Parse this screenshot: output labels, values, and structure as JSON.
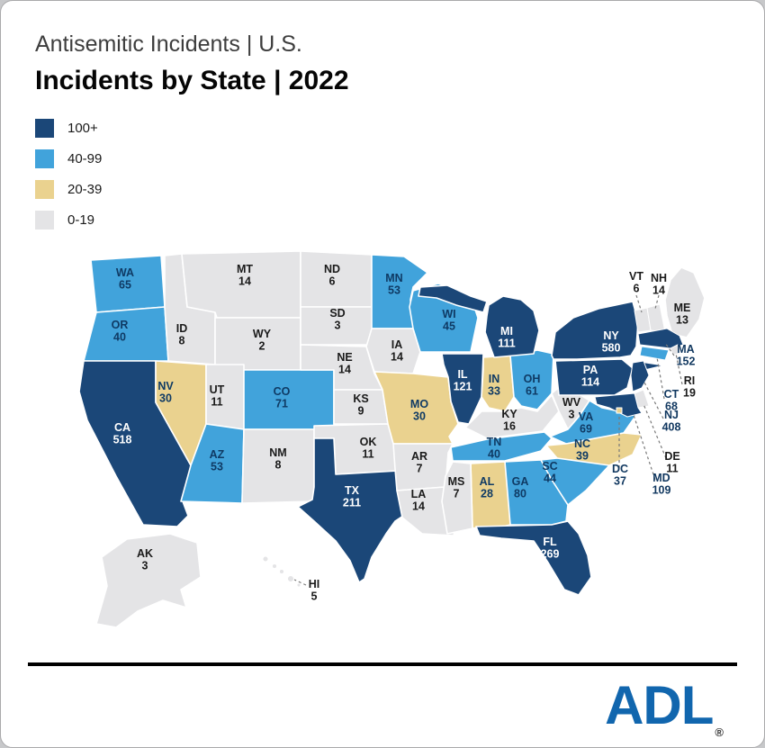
{
  "header": {
    "title_line1": "Antisemitic Incidents | U.S.",
    "title_line2": "Incidents by State | 2022"
  },
  "legend": {
    "items": [
      {
        "label": "100+",
        "color": "#1B4778",
        "text_color": "#FFFFFF"
      },
      {
        "label": "40-99",
        "color": "#41A3DB",
        "text_color": "#0F3A64"
      },
      {
        "label": "20-39",
        "color": "#EAD28F",
        "text_color": "#0F3A64"
      },
      {
        "label": "0-19",
        "color": "#E4E4E6",
        "text_color": "#1A1A1A"
      }
    ]
  },
  "chart_data": {
    "type": "heatmap",
    "subtype": "choropleth-us-states",
    "title": "Antisemitic Incidents | U.S.",
    "subtitle": "Incidents by State | 2022",
    "legend_position": "top-left",
    "bins": [
      {
        "label": "100+",
        "color": "#1B4778"
      },
      {
        "label": "40-99",
        "color": "#41A3DB"
      },
      {
        "label": "20-39",
        "color": "#EAD28F"
      },
      {
        "label": "0-19",
        "color": "#E4E4E6"
      }
    ],
    "states": [
      {
        "abbr": "WA",
        "value": 65,
        "bin": "40-99"
      },
      {
        "abbr": "OR",
        "value": 40,
        "bin": "40-99"
      },
      {
        "abbr": "CA",
        "value": 518,
        "bin": "100+"
      },
      {
        "abbr": "NV",
        "value": 30,
        "bin": "20-39"
      },
      {
        "abbr": "ID",
        "value": 8,
        "bin": "0-19"
      },
      {
        "abbr": "MT",
        "value": 14,
        "bin": "0-19"
      },
      {
        "abbr": "WY",
        "value": 2,
        "bin": "0-19"
      },
      {
        "abbr": "UT",
        "value": 11,
        "bin": "0-19"
      },
      {
        "abbr": "CO",
        "value": 71,
        "bin": "40-99"
      },
      {
        "abbr": "AZ",
        "value": 53,
        "bin": "40-99"
      },
      {
        "abbr": "NM",
        "value": 8,
        "bin": "0-19"
      },
      {
        "abbr": "ND",
        "value": 6,
        "bin": "0-19"
      },
      {
        "abbr": "SD",
        "value": 3,
        "bin": "0-19"
      },
      {
        "abbr": "NE",
        "value": 14,
        "bin": "0-19"
      },
      {
        "abbr": "KS",
        "value": 9,
        "bin": "0-19"
      },
      {
        "abbr": "OK",
        "value": 11,
        "bin": "0-19"
      },
      {
        "abbr": "TX",
        "value": 211,
        "bin": "100+"
      },
      {
        "abbr": "MN",
        "value": 53,
        "bin": "40-99"
      },
      {
        "abbr": "IA",
        "value": 14,
        "bin": "0-19"
      },
      {
        "abbr": "MO",
        "value": 30,
        "bin": "20-39"
      },
      {
        "abbr": "AR",
        "value": 7,
        "bin": "0-19"
      },
      {
        "abbr": "LA",
        "value": 14,
        "bin": "0-19"
      },
      {
        "abbr": "WI",
        "value": 45,
        "bin": "40-99"
      },
      {
        "abbr": "IL",
        "value": 121,
        "bin": "100+"
      },
      {
        "abbr": "IN",
        "value": 33,
        "bin": "20-39"
      },
      {
        "abbr": "OH",
        "value": 61,
        "bin": "40-99"
      },
      {
        "abbr": "MI",
        "value": 111,
        "bin": "100+"
      },
      {
        "abbr": "KY",
        "value": 16,
        "bin": "0-19"
      },
      {
        "abbr": "TN",
        "value": 40,
        "bin": "40-99"
      },
      {
        "abbr": "WV",
        "value": 3,
        "bin": "0-19"
      },
      {
        "abbr": "VA",
        "value": 69,
        "bin": "40-99"
      },
      {
        "abbr": "NC",
        "value": 39,
        "bin": "20-39"
      },
      {
        "abbr": "SC",
        "value": 44,
        "bin": "40-99"
      },
      {
        "abbr": "GA",
        "value": 80,
        "bin": "40-99"
      },
      {
        "abbr": "AL",
        "value": 28,
        "bin": "20-39"
      },
      {
        "abbr": "MS",
        "value": 7,
        "bin": "0-19"
      },
      {
        "abbr": "FL",
        "value": 269,
        "bin": "100+"
      },
      {
        "abbr": "NY",
        "value": 580,
        "bin": "100+"
      },
      {
        "abbr": "PA",
        "value": 114,
        "bin": "100+"
      },
      {
        "abbr": "ME",
        "value": 13,
        "bin": "0-19"
      },
      {
        "abbr": "VT",
        "value": 6,
        "bin": "0-19"
      },
      {
        "abbr": "NH",
        "value": 14,
        "bin": "0-19"
      },
      {
        "abbr": "MA",
        "value": 152,
        "bin": "100+"
      },
      {
        "abbr": "RI",
        "value": 19,
        "bin": "0-19"
      },
      {
        "abbr": "CT",
        "value": 68,
        "bin": "40-99"
      },
      {
        "abbr": "NJ",
        "value": 408,
        "bin": "100+"
      },
      {
        "abbr": "DE",
        "value": 11,
        "bin": "0-19"
      },
      {
        "abbr": "MD",
        "value": 109,
        "bin": "100+"
      },
      {
        "abbr": "DC",
        "value": 37,
        "bin": "20-39"
      },
      {
        "abbr": "AK",
        "value": 3,
        "bin": "0-19"
      },
      {
        "abbr": "HI",
        "value": 5,
        "bin": "0-19"
      }
    ]
  },
  "footer": {
    "logo_text": "ADL",
    "registered_mark": "®",
    "logo_color": "#1166AE"
  }
}
